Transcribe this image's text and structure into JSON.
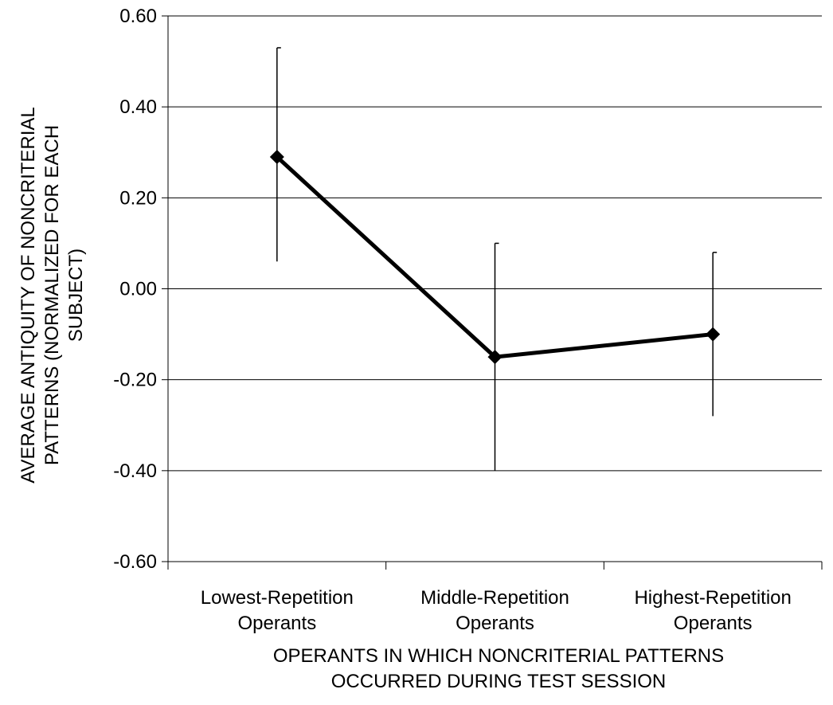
{
  "chart_data": {
    "type": "line",
    "title": "",
    "xlabel": [
      "OPERANTS IN WHICH NONCRITERIAL PATTERNS",
      "OCCURRED DURING TEST SESSION"
    ],
    "ylabel": [
      "AVERAGE ANTIQUITY OF NONCRITERIAL",
      "PATTERNS (NORMALIZED FOR EACH",
      "SUBJECT)"
    ],
    "categories": [
      [
        "Lowest-Repetition",
        "Operants"
      ],
      [
        "Middle-Repetition",
        "Operants"
      ],
      [
        "Highest-Repetition",
        "Operants"
      ]
    ],
    "series": [
      {
        "values": [
          0.29,
          -0.15,
          -0.1
        ],
        "error_upper": [
          0.53,
          0.1,
          0.08
        ],
        "error_lower": [
          0.06,
          -0.4,
          -0.28
        ],
        "color": "#000000",
        "marker": "diamond"
      }
    ],
    "ylim": [
      -0.6,
      0.6
    ],
    "yticks": [
      0.6,
      0.4,
      0.2,
      0.0,
      -0.2,
      -0.4,
      -0.6
    ],
    "ytick_labels": [
      "0.60",
      "0.40",
      "0.20",
      "0.00",
      "-0.20",
      "-0.40",
      "-0.60"
    ],
    "grid": "horizontal",
    "legend": "none"
  }
}
